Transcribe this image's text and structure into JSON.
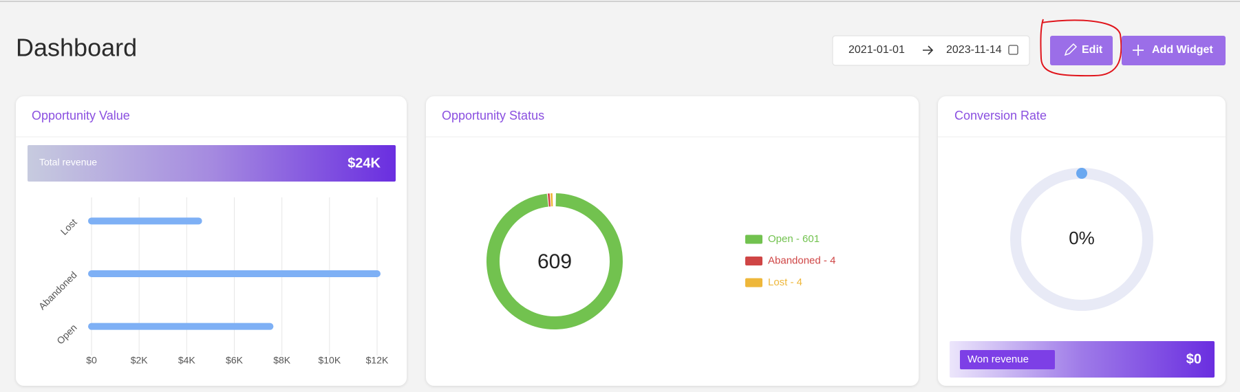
{
  "header": {
    "title": "Dashboard",
    "date_start": "2021-01-01",
    "date_end": "2023-11-14",
    "edit": "Edit",
    "add_widget": "Add Widget"
  },
  "opportunity_value": {
    "title": "Opportunity Value",
    "total_label": "Total revenue",
    "total_value": "$24K",
    "chart": {
      "type": "bar",
      "orientation": "horizontal",
      "categories": [
        "Lost",
        "Abandoned",
        "Open"
      ],
      "values": [
        4500,
        12000,
        7500
      ],
      "color": "#7eb0f5",
      "xlim": [
        0,
        12000
      ],
      "xticks": [
        {
          "value": 0,
          "label": "$0"
        },
        {
          "value": 2000,
          "label": "$2K"
        },
        {
          "value": 4000,
          "label": "$4K"
        },
        {
          "value": 6000,
          "label": "$6K"
        },
        {
          "value": 8000,
          "label": "$8K"
        },
        {
          "value": 10000,
          "label": "$10K"
        },
        {
          "value": 12000,
          "label": "$12K"
        }
      ],
      "grid": true
    }
  },
  "opportunity_status": {
    "title": "Opportunity Status",
    "chart": {
      "type": "donut",
      "total": 609,
      "categories": [
        "Open",
        "Abandoned",
        "Lost"
      ],
      "values": [
        601,
        4,
        4
      ],
      "colors": [
        "#72c24f",
        "#cf4545",
        "#eeb73a"
      ],
      "legend_labels": [
        "Open - 601",
        "Abandoned - 4",
        "Lost - 4"
      ]
    }
  },
  "conversion_rate": {
    "title": "Conversion Rate",
    "chart": {
      "type": "gauge",
      "value": 0,
      "value_label": "0%",
      "ylim": [
        0,
        100
      ],
      "color": "#6aa8f0",
      "track_color": "#e8eaf6"
    },
    "won_label": "Won revenue",
    "won_value": "$0"
  }
}
